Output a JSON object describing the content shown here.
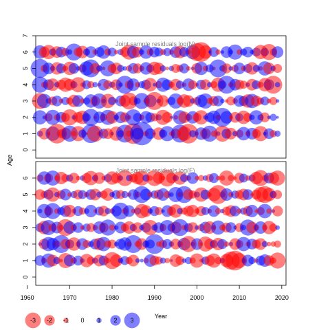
{
  "chart_data": [
    {
      "type": "scatter",
      "title": "Joint sample residuals log(N)",
      "ylabel": "Age",
      "xlim": [
        1962,
        2021
      ],
      "ylim": [
        -0.5,
        7
      ],
      "yticks": [
        0,
        1,
        2,
        3,
        4,
        5,
        6,
        7
      ],
      "ages": [
        1,
        2,
        3,
        4,
        5,
        6
      ],
      "years": [
        1963,
        2019
      ],
      "colors": {
        "positive": "#0000ff",
        "negative": "#ff0000"
      },
      "values": [
        [
          0.7,
          -1.3,
          -0.4,
          1.6,
          -2.2,
          -1.0,
          -1.3,
          1.8,
          -0.6,
          -1.7,
          0.9,
          -0.3,
          2.1,
          -1.8,
          -0.5,
          1.1,
          -1.2,
          0.4,
          -1.6,
          0.8,
          2.0,
          -0.7,
          -2.3,
          1.3,
          2.6,
          -0.6,
          1.2,
          0.3,
          -1.4,
          0.9,
          1.7,
          -0.5,
          -1.1,
          2.0,
          -1.6,
          -2.2,
          0.8,
          -0.4,
          1.4,
          -1.2,
          1.8,
          -0.7,
          0.5,
          -1.8,
          1.1,
          -1.3,
          0.6,
          -0.9,
          1.5,
          -0.6,
          1.3,
          -1.0,
          -1.7,
          0.4,
          1.2,
          -0.8,
          0.7
        ],
        [
          1.6,
          0.4,
          -0.9,
          1.7,
          -0.7,
          1.2,
          -1.0,
          -1.8,
          0.5,
          -1.2,
          -1.5,
          0.9,
          1.9,
          -0.4,
          1.3,
          -0.8,
          1.7,
          -1.4,
          0.6,
          1.3,
          -1.1,
          -0.5,
          1.8,
          1.0,
          -0.6,
          1.4,
          1.1,
          -0.9,
          0.7,
          -1.7,
          -1.2,
          0.3,
          -0.5,
          1.6,
          -1.3,
          -0.8,
          1.4,
          -1.0,
          -1.6,
          0.5,
          1.1,
          1.5,
          -0.6,
          2.1,
          1.4,
          -0.4,
          -1.2,
          0.9,
          -1.5,
          -1.0,
          0.6,
          1.6,
          0.7,
          -1.1,
          0.4,
          0.8,
          0.3
        ],
        [
          -1.8,
          1.6,
          0.6,
          -1.0,
          1.2,
          -0.5,
          0.9,
          -0.8,
          -1.4,
          1.3,
          -0.6,
          0.8,
          1.5,
          -1.1,
          1.7,
          0.5,
          -1.6,
          0.9,
          -0.4,
          1.2,
          -1.3,
          -1.9,
          -1.0,
          0.7,
          1.8,
          -0.6,
          1.4,
          -2.0,
          0.5,
          -1.3,
          -0.4,
          0.9,
          1.7,
          -0.8,
          -1.5,
          -1.3,
          0.6,
          -0.9,
          1.4,
          1.7,
          -0.7,
          -1.1,
          1.2,
          0.5,
          -0.4,
          -1.0,
          -0.6,
          1.3,
          1.1,
          -1.5,
          1.6,
          -1.2,
          -0.8,
          1.0,
          -0.5,
          -0.9,
          0.4
        ],
        [
          1.8,
          -0.7,
          1.2,
          -1.4,
          0.6,
          -1.1,
          -1.6,
          -1.3,
          0.8,
          -1.7,
          -0.5,
          1.0,
          -0.8,
          0.6,
          -0.4,
          1.3,
          -1.0,
          0.7,
          -1.2,
          0.5,
          2.0,
          -0.9,
          1.4,
          -0.6,
          0.8,
          1.1,
          -1.5,
          0.4,
          -0.8,
          1.6,
          1.2,
          -0.7,
          -1.3,
          0.9,
          -0.5,
          1.4,
          -1.0,
          -0.4,
          1.1,
          -1.2,
          0.6,
          -0.8,
          -1.6,
          0.9,
          2.0,
          -0.6,
          1.3,
          -1.1,
          -0.9,
          0.5,
          -1.3,
          1.0,
          -0.7,
          -1.5,
          1.2,
          -2.0,
          0.6
        ],
        [
          2.1,
          -0.8,
          1.3,
          0.6,
          -1.4,
          1.1,
          -0.6,
          -1.5,
          1.2,
          0.5,
          -0.9,
          1.6,
          2.0,
          -1.2,
          0.7,
          -0.4,
          1.8,
          -1.0,
          -1.3,
          0.8,
          0.5,
          -0.7,
          1.2,
          -1.1,
          -0.6,
          1.4,
          0.9,
          -1.5,
          -1.3,
          0.7,
          -0.4,
          0.6,
          -1.0,
          -0.8,
          1.1,
          -0.5,
          0.4,
          -1.2,
          1.5,
          -0.6,
          0.9,
          -0.4,
          2.0,
          0.7,
          -1.1,
          0.5,
          -0.8,
          1.3,
          -0.6,
          1.0,
          -1.4,
          0.8,
          -0.5,
          1.6,
          -1.3,
          0.6,
          -1.0
        ],
        [
          1.5,
          -1.2,
          -1.6,
          0.8,
          -1.3,
          1.2,
          -0.9,
          0.6,
          1.9,
          -1.0,
          -1.4,
          0.8,
          1.3,
          -0.6,
          1.1,
          1.5,
          -0.8,
          1.0,
          -0.5,
          0.7,
          -1.1,
          -1.7,
          1.4,
          -1.2,
          0.6,
          1.5,
          -0.8,
          1.2,
          1.0,
          -0.7,
          0.9,
          -0.6,
          1.3,
          -1.4,
          1.1,
          -0.5,
          1.6,
          -2.0,
          -2.2,
          -1.5,
          0.3,
          1.1,
          -0.6,
          0.4,
          1.3,
          0.5,
          1.7,
          -0.6,
          0.8,
          1.2,
          0.5,
          1.0,
          -1.6,
          0.9,
          -1.8,
          -0.8,
          1.3
        ]
      ]
    },
    {
      "type": "scatter",
      "title": "Joint sample residuals log(F)",
      "xlabel": "Year",
      "xlim": [
        1962,
        2021
      ],
      "ylim": [
        -0.5,
        7
      ],
      "xticks": [
        1960,
        1970,
        1980,
        1990,
        2000,
        2010,
        2020
      ],
      "yticks": [
        0,
        1,
        2,
        3,
        4,
        5,
        6
      ],
      "ages": [
        1,
        2,
        3,
        4,
        5,
        6
      ],
      "years": [
        1963,
        2019
      ],
      "colors": {
        "positive": "#0000ff",
        "negative": "#ff0000"
      },
      "values": [
        [
          1.2,
          -0.6,
          1.6,
          -1.3,
          0.8,
          -0.4,
          -1.7,
          1.3,
          -0.7,
          1.1,
          0.5,
          -1.5,
          -0.9,
          0.7,
          -1.3,
          1.1,
          -0.6,
          -1.9,
          -1.4,
          0.6,
          1.0,
          -0.8,
          -1.3,
          0.5,
          0.4,
          -0.6,
          1.4,
          -1.1,
          -0.9,
          0.7,
          -0.6,
          0.3,
          -1.4,
          -1.0,
          0.5,
          0.8,
          -0.7,
          -1.6,
          -0.4,
          0.9,
          -1.2,
          -1.6,
          -0.8,
          0.6,
          -1.5,
          -2.0,
          -2.2,
          -1.7,
          -0.6,
          1.3,
          0.8,
          -0.5,
          1.1,
          1.4,
          -1.2,
          -0.7,
          -1.8
        ],
        [
          0.4,
          -1.2,
          1.6,
          1.4,
          -0.8,
          2.0,
          -1.1,
          1.0,
          -1.5,
          -0.6,
          1.3,
          -0.9,
          0.7,
          1.2,
          -1.4,
          1.6,
          -0.8,
          -1.0,
          0.5,
          1.2,
          1.5,
          -0.6,
          2.0,
          -0.7,
          -1.3,
          0.8,
          1.0,
          2.2,
          -0.6,
          -0.9,
          1.1,
          0.6,
          -1.2,
          -0.7,
          1.4,
          -1.8,
          -0.5,
          1.3,
          -0.4,
          -1.7,
          -1.2,
          0.9,
          -1.4,
          1.1,
          -0.6,
          0.5,
          -1.3,
          -0.9,
          1.6,
          -0.5,
          1.2,
          -1.0,
          -1.3,
          0.7,
          -0.5,
          -0.6,
          -0.8
        ],
        [
          1.0,
          -1.5,
          1.7,
          -0.9,
          1.3,
          -0.6,
          -1.9,
          1.4,
          -0.7,
          1.2,
          -0.5,
          0.9,
          -1.0,
          -0.6,
          1.4,
          -1.1,
          1.8,
          -0.7,
          0.5,
          1.3,
          -0.9,
          -1.4,
          0.8,
          -1.2,
          0.6,
          1.1,
          -1.7,
          0.7,
          1.2,
          -0.8,
          1.7,
          0.9,
          -1.3,
          1.9,
          -0.6,
          1.0,
          -1.2,
          0.5,
          -0.8,
          1.3,
          -1.4,
          -0.5,
          1.6,
          -0.7,
          -1.1,
          1.2,
          0.4,
          -1.0,
          0.6,
          1.8,
          -1.3,
          -0.7,
          1.4,
          -0.6,
          -1.5,
          -0.9,
          0.5
        ],
        [
          0.5,
          1.6,
          -1.0,
          1.8,
          -0.6,
          0.9,
          1.3,
          -1.4,
          -0.5,
          1.1,
          -0.8,
          0.6,
          1.4,
          -0.4,
          1.0,
          -1.2,
          0.7,
          -0.6,
          1.2,
          1.9,
          -0.7,
          1.3,
          -0.5,
          0.8,
          -1.6,
          -1.3,
          0.6,
          1.1,
          -0.9,
          0.4,
          1.3,
          -1.0,
          -1.5,
          0.7,
          -0.8,
          -1.2,
          -1.4,
          -0.6,
          -1.1,
          0.9,
          -0.5,
          1.3,
          -0.7,
          0.5,
          -1.0,
          -1.3,
          1.2,
          -0.6,
          0.8,
          -1.1,
          1.4,
          -0.4,
          -0.9,
          1.6,
          -0.6,
          0.4,
          -1.2
        ],
        [
          -1.2,
          -0.8,
          1.1,
          -1.6,
          0.6,
          -1.0,
          1.3,
          -0.5,
          0.8,
          -1.1,
          1.0,
          -0.6,
          1.2,
          -1.3,
          0.7,
          -0.9,
          -1.4,
          0.6,
          1.0,
          -1.0,
          0.8,
          -0.5,
          1.2,
          -0.7,
          1.9,
          1.3,
          -0.6,
          0.9,
          -1.1,
          1.4,
          -0.8,
          0.5,
          1.7,
          -0.6,
          1.9,
          -1.2,
          -0.9,
          0.7,
          -1.6,
          1.1,
          -0.5,
          -1.5,
          -2.1,
          -0.7,
          1.4,
          -0.6,
          0.9,
          -1.0,
          -1.3,
          1.2,
          -0.4,
          -1.1,
          -1.7,
          -1.9,
          -1.5,
          0.8,
          -1.0
        ],
        [
          -0.8,
          1.5,
          -1.0,
          1.7,
          -0.6,
          -1.4,
          -0.9,
          0.8,
          -1.2,
          -0.5,
          0.6,
          -1.1,
          -1.6,
          0.7,
          -1.3,
          -0.5,
          0.9,
          -1.5,
          -1.2,
          0.6,
          -1.8,
          0.7,
          -1.0,
          -1.4,
          -1.7,
          0.8,
          -0.6,
          -1.8,
          -1.3,
          -0.5,
          -1.9,
          -1.2,
          0.7,
          -1.5,
          0.9,
          -0.6,
          1.3,
          -0.5,
          -0.7,
          0.6,
          -0.9,
          1.1,
          -0.5,
          -0.6,
          -1.7,
          -0.7,
          -0.4,
          -1.2,
          1.0,
          -0.6,
          0.8,
          -1.4,
          -1.8,
          -0.7,
          1.2,
          -1.3,
          -1.7
        ]
      ]
    }
  ],
  "legend": {
    "entries": [
      {
        "label": "-3",
        "value": -3
      },
      {
        "label": "-2",
        "value": -2
      },
      {
        "label": "-1",
        "value": -1
      },
      {
        "label": "0",
        "value": 0
      },
      {
        "label": "1",
        "value": 1
      },
      {
        "label": "2",
        "value": 2
      },
      {
        "label": "3",
        "value": 3
      }
    ]
  }
}
